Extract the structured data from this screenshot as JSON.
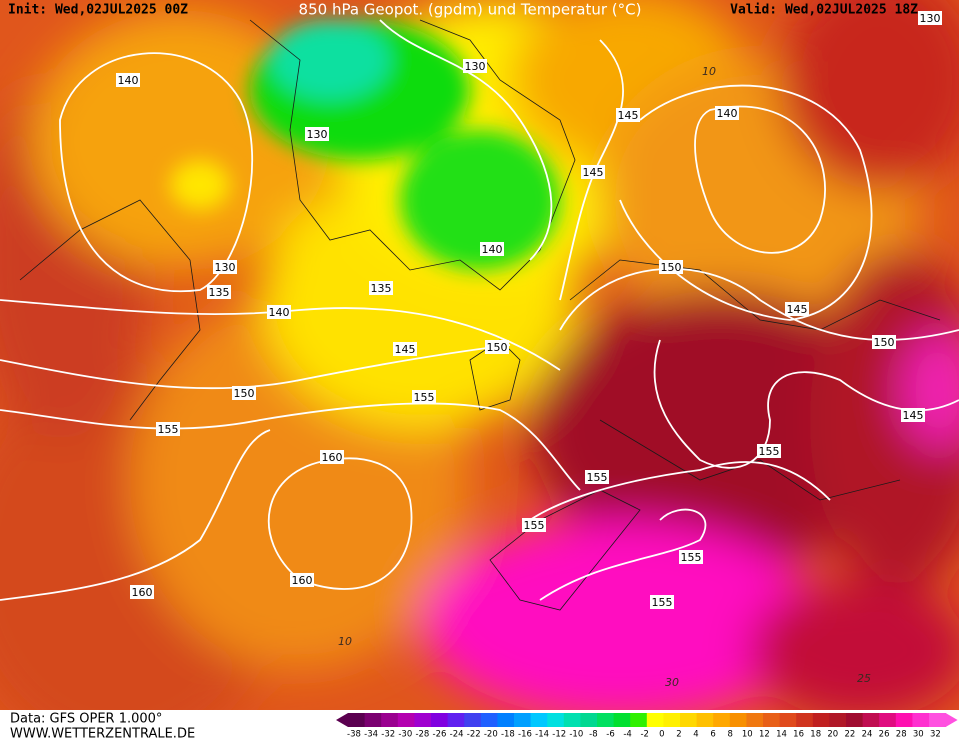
{
  "header": {
    "init": "Init: Wed,02JUL2025 00Z",
    "title": "850 hPa Geopot. (gpdm) und Temperatur (°C)",
    "valid": "Valid: Wed,02JUL2025 18Z"
  },
  "footer": {
    "data": "Data: GFS OPER 1.000°",
    "site": "WWW.WETTERZENTRALE.DE"
  },
  "legend": {
    "labels": [
      -38,
      -34,
      -32,
      -30,
      -28,
      -26,
      -24,
      -22,
      -20,
      -18,
      -16,
      -14,
      -12,
      -10,
      -8,
      -6,
      -4,
      -2,
      0,
      2,
      4,
      6,
      8,
      10,
      12,
      14,
      16,
      18,
      20,
      22,
      24,
      26,
      28,
      30,
      32
    ]
  },
  "map": {
    "geopotential_labels": [
      130,
      140,
      130,
      130,
      145,
      140,
      145,
      130,
      135,
      140,
      135,
      140,
      150,
      145,
      150,
      145,
      150,
      150,
      155,
      155,
      145,
      155,
      160,
      155,
      155,
      155,
      160,
      160,
      155
    ],
    "temperature_labels": [
      10,
      10,
      30,
      25
    ]
  }
}
